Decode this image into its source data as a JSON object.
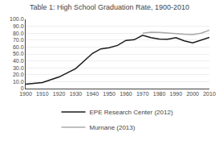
{
  "chart_data": {
    "type": "line",
    "title": "Table 1: High School Graduation Rate, 1900-2010",
    "series": [
      {
        "name": "EPE Research Center (2012)",
        "color": "#1a1a1a",
        "x": [
          1900,
          1910,
          1920,
          1930,
          1940,
          1945,
          1950,
          1955,
          1960,
          1965,
          1970,
          1975,
          1980,
          1985,
          1990,
          1995,
          2000,
          2005,
          2010
        ],
        "values": [
          6.5,
          8.8,
          16.8,
          29.0,
          50.8,
          57.4,
          59.0,
          62.3,
          69.5,
          70.5,
          76.9,
          73.5,
          71.4,
          71.1,
          73.4,
          69.0,
          66.1,
          70.0,
          74.0
        ]
      },
      {
        "name": "Murnane (2013)",
        "color": "#aaaaaa",
        "x": [
          1970,
          1975,
          1980,
          1985,
          1990,
          1995,
          2000,
          2005,
          2010
        ],
        "values": [
          80.0,
          81.5,
          81.0,
          80.5,
          79.5,
          78.5,
          78.0,
          80.0,
          84.5
        ]
      }
    ],
    "xlim": [
      1900,
      2010
    ],
    "ylim": [
      0,
      100
    ],
    "xticks": [
      1900,
      1910,
      1920,
      1930,
      1940,
      1950,
      1960,
      1970,
      1980,
      1990,
      2000,
      2010
    ],
    "yticks": [
      0,
      {
        "value": 10,
        "label": "10.0"
      },
      {
        "value": 20,
        "label": "20.0"
      },
      {
        "value": 30,
        "label": "30.0"
      },
      {
        "value": 40,
        "label": "40.0"
      },
      {
        "value": 50,
        "label": "50.0"
      },
      {
        "value": 60,
        "label": "60.0"
      },
      {
        "value": 70,
        "label": "70.0"
      },
      {
        "value": 80,
        "label": "80.0"
      },
      {
        "value": 90,
        "label": "90.0"
      },
      {
        "value": 100,
        "label": "100.0"
      }
    ],
    "grid": true,
    "legend": "bottom"
  }
}
